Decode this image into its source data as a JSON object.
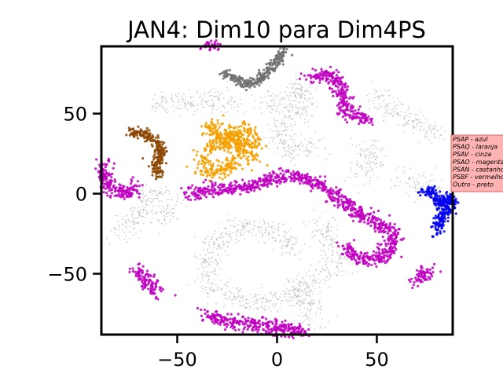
{
  "chart_data": {
    "type": "scatter",
    "title": "JAN4: Dim10 para Dim4PS",
    "xlabel": "",
    "ylabel": "",
    "xlim": [
      -88,
      88
    ],
    "ylim": [
      -88,
      92
    ],
    "grid": false,
    "legend_placement": "right, outside plot, partially cut off",
    "x_ticks": [
      -50,
      0,
      50
    ],
    "x_tick_labels": [
      "−50",
      "0",
      "50"
    ],
    "y_ticks": [
      50,
      0,
      -50
    ],
    "y_tick_labels": [
      "50",
      "0",
      "−50"
    ],
    "legend_entries": [
      "PSAP - azul",
      "PSAQ - laranja",
      "PSAV - cinza",
      "PSAO - magenta",
      "PSAN - castanho",
      "PSBF - vermelho",
      "Outro - preto"
    ],
    "colors": {
      "PSAP": "#0000ee",
      "PSAQ": "#f5a000",
      "PSAV": "#707070",
      "PSAO": "#c000c0",
      "PSAN": "#8b4500",
      "Outro": "#9a9a9a",
      "legend_background": "#ffb3b3",
      "legend_border": "#e06060"
    },
    "series": [
      {
        "name": "PSAP - azul",
        "paths": [
          [
            [
              73,
              0
            ],
            [
              77,
              2
            ],
            [
              80,
              -4
            ],
            [
              82,
              -8
            ],
            [
              84,
              -4
            ],
            [
              86,
              -2
            ],
            [
              88,
              -6
            ],
            [
              86,
              -10
            ],
            [
              83,
              -12
            ],
            [
              82,
              -16
            ],
            [
              80,
              -22
            ],
            [
              79,
              -24
            ]
          ]
        ],
        "spread": 1.6
      },
      {
        "name": "PSAQ - laranja",
        "paths": [
          [
            [
              -38,
              20
            ],
            [
              -36,
              16
            ],
            [
              -33,
              13
            ],
            [
              -28,
              15
            ],
            [
              -24,
              18
            ],
            [
              -20,
              20
            ]
          ],
          [
            [
              -28,
              35
            ],
            [
              -24,
              31
            ],
            [
              -19,
              30
            ],
            [
              -15,
              26
            ],
            [
              -12,
              22
            ]
          ],
          [
            [
              -36,
              27
            ],
            [
              -31,
              30
            ],
            [
              -26,
              33
            ],
            [
              -22,
              38
            ],
            [
              -18,
              40
            ],
            [
              -14,
              36
            ],
            [
              -12,
              28
            ]
          ],
          [
            [
              -34,
              38
            ],
            [
              -30,
              42
            ],
            [
              -27,
              41
            ]
          ]
        ],
        "spread": 2.8
      },
      {
        "name": "PSAV - cinza",
        "paths": [
          [
            [
              -27,
              75
            ],
            [
              -20,
              72
            ],
            [
              -14,
              68
            ],
            [
              -8,
              72
            ],
            [
              -2,
              80
            ],
            [
              4,
              90
            ]
          ]
        ],
        "spread": 1.4
      },
      {
        "name": "PSAO - magenta",
        "paths": [
          [
            [
              -45,
              0
            ],
            [
              -35,
              2
            ],
            [
              -25,
              3
            ],
            [
              -15,
              4
            ],
            [
              -5,
              8
            ],
            [
              5,
              11
            ],
            [
              15,
              9
            ],
            [
              25,
              3
            ],
            [
              32,
              -4
            ],
            [
              40,
              -12
            ],
            [
              50,
              -18
            ],
            [
              58,
              -24
            ],
            [
              58,
              -34
            ],
            [
              52,
              -40
            ],
            [
              45,
              -42
            ],
            [
              38,
              -38
            ],
            [
              35,
              -32
            ]
          ],
          [
            [
              16,
              72
            ],
            [
              24,
              75
            ],
            [
              29,
              73
            ],
            [
              33,
              62
            ],
            [
              35,
              50
            ],
            [
              40,
              48
            ],
            [
              46,
              46
            ]
          ],
          [
            [
              -88,
              19
            ],
            [
              -85,
              10
            ],
            [
              -84,
              4
            ],
            [
              -80,
              1
            ],
            [
              -75,
              0
            ],
            [
              -72,
              3
            ],
            [
              -71,
              6
            ]
          ],
          [
            [
              -70,
              -47
            ],
            [
              -67,
              -52
            ],
            [
              -64,
              -57
            ],
            [
              -60,
              -62
            ]
          ],
          [
            [
              -35,
              -75
            ],
            [
              -28,
              -79
            ],
            [
              -20,
              -81
            ],
            [
              -10,
              -82
            ],
            [
              0,
              -84
            ],
            [
              10,
              -85
            ],
            [
              15,
              -86
            ]
          ],
          [
            [
              -36,
              93
            ],
            [
              -31,
              92
            ]
          ],
          [
            [
              70,
              -55
            ],
            [
              74,
              -50
            ],
            [
              76,
              -46
            ]
          ]
        ],
        "spread": 2.2
      },
      {
        "name": "PSAN - castanho",
        "paths": [
          [
            [
              -74,
              38
            ],
            [
              -69,
              38
            ],
            [
              -65,
              37
            ],
            [
              -62,
              34
            ],
            [
              -59,
              31
            ],
            [
              -58,
              27
            ],
            [
              -59,
              22
            ],
            [
              -61,
              18
            ],
            [
              -60,
              14
            ],
            [
              -58,
              11
            ]
          ]
        ],
        "spread": 1.6
      },
      {
        "name": "Outro - preto",
        "paths": [
          [
            [
              -62,
              57
            ],
            [
              -50,
              57
            ],
            [
              -38,
              58
            ],
            [
              -28,
              58
            ],
            [
              -20,
              54
            ]
          ],
          [
            [
              -5,
              52
            ],
            [
              2,
              60
            ],
            [
              10,
              66
            ],
            [
              16,
              60
            ],
            [
              10,
              50
            ],
            [
              2,
              42
            ],
            [
              0,
              34
            ],
            [
              6,
              28
            ],
            [
              14,
              28
            ],
            [
              20,
              32
            ]
          ],
          [
            [
              48,
              62
            ],
            [
              57,
              53
            ],
            [
              66,
              46
            ],
            [
              74,
              42
            ],
            [
              80,
              36
            ]
          ],
          [
            [
              42,
              26
            ],
            [
              48,
              28
            ],
            [
              48,
              20
            ],
            [
              44,
              14
            ],
            [
              38,
              12
            ]
          ],
          [
            [
              62,
              10
            ],
            [
              70,
              6
            ],
            [
              76,
              4
            ],
            [
              80,
              -2
            ]
          ],
          [
            [
              -80,
              -25
            ],
            [
              -75,
              -20
            ],
            [
              -70,
              -14
            ],
            [
              -66,
              -6
            ],
            [
              -62,
              -2
            ],
            [
              -58,
              4
            ]
          ],
          [
            [
              -35,
              -55
            ],
            [
              -35,
              -44
            ],
            [
              -32,
              -33
            ],
            [
              -24,
              -24
            ],
            [
              -14,
              -20
            ],
            [
              -4,
              -22
            ],
            [
              5,
              -28
            ],
            [
              10,
              -36
            ]
          ],
          [
            [
              -35,
              -58
            ],
            [
              -26,
              -62
            ],
            [
              -16,
              -66
            ],
            [
              -6,
              -68
            ],
            [
              4,
              -66
            ],
            [
              12,
              -60
            ],
            [
              20,
              -52
            ],
            [
              28,
              -46
            ]
          ],
          [
            [
              22,
              -16
            ],
            [
              24,
              -24
            ],
            [
              26,
              -32
            ],
            [
              30,
              -40
            ],
            [
              34,
              -44
            ]
          ],
          [
            [
              10,
              -56
            ],
            [
              14,
              -66
            ],
            [
              18,
              -76
            ],
            [
              15,
              -84
            ]
          ],
          [
            [
              -60,
              -17
            ],
            [
              -55,
              -10
            ],
            [
              -50,
              -6
            ]
          ]
        ],
        "spread": 3.6
      }
    ]
  }
}
